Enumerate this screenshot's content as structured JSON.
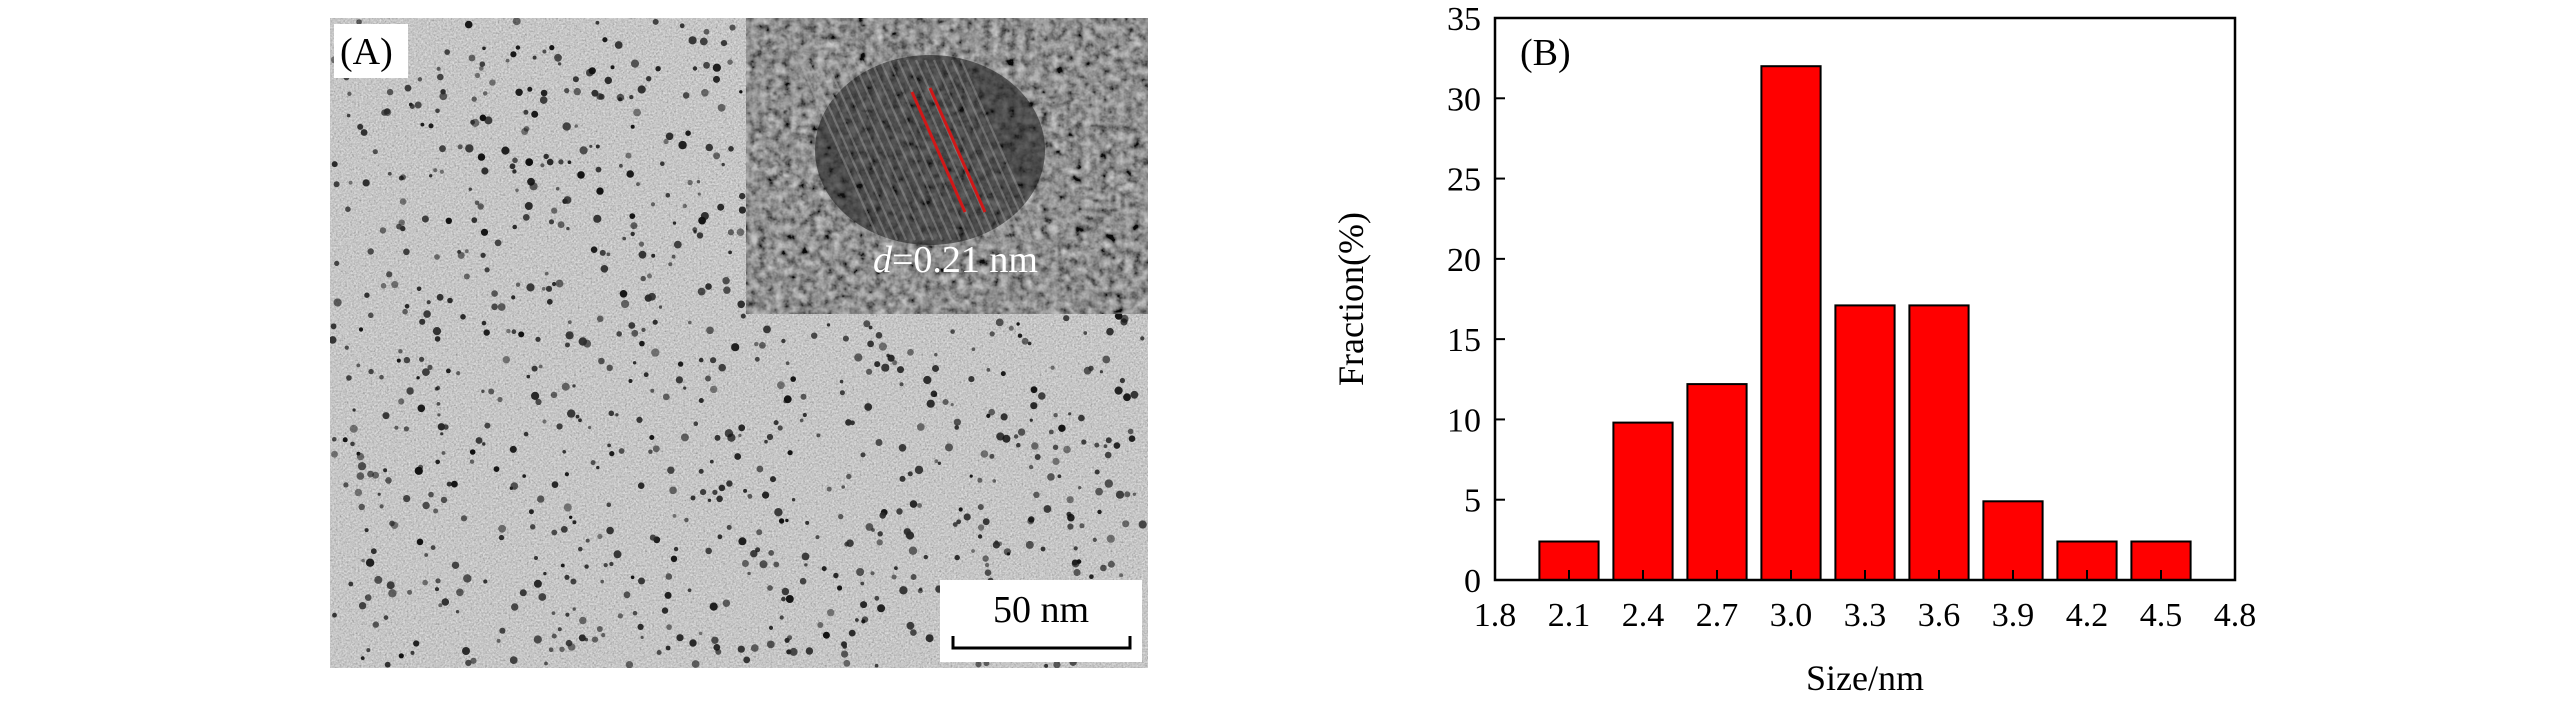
{
  "panel_a": {
    "label": "(A)",
    "inset_annotation_italic": "d",
    "inset_annotation_value": "=0.21 nm",
    "scale_bar_label": "50 nm"
  },
  "colors": {
    "bar_fill": "#ff0000",
    "bar_stroke": "#000000",
    "lattice_lines": "#d01818"
  },
  "chart_data": {
    "type": "bar",
    "panel_label": "(B)",
    "xlabel": "Size/nm",
    "ylabel": "Fraction(%)",
    "x": [
      2.1,
      2.4,
      2.7,
      3.0,
      3.3,
      3.6,
      3.9,
      4.2,
      4.5
    ],
    "values": [
      2.4,
      9.8,
      12.2,
      32,
      17.1,
      17.1,
      4.9,
      2.4,
      2.4
    ],
    "xlim": [
      1.8,
      4.8
    ],
    "ylim": [
      0,
      35
    ],
    "bar_width": 0.24,
    "xticks": [
      "1.8",
      "2.1",
      "2.4",
      "2.7",
      "3.0",
      "3.3",
      "3.6",
      "3.9",
      "4.2",
      "4.5",
      "4.8"
    ],
    "yticks": [
      "0",
      "5",
      "10",
      "15",
      "20",
      "25",
      "30",
      "35"
    ],
    "grid": false
  }
}
